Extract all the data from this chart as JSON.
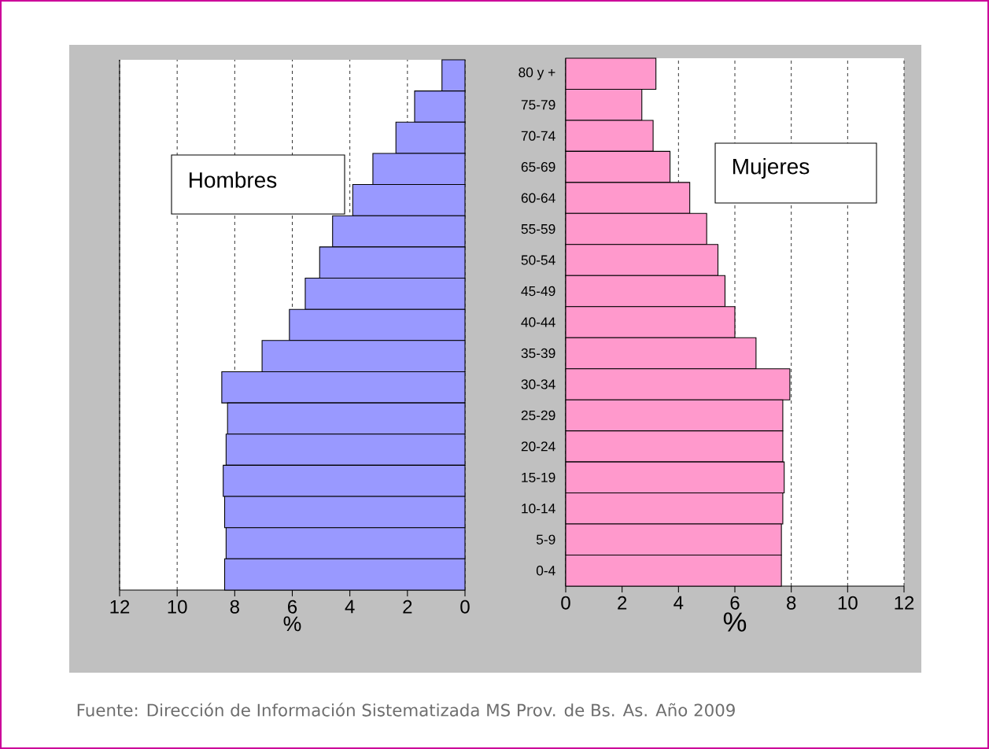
{
  "chart_data": [
    {
      "type": "bar",
      "orientation": "horizontal",
      "categories": [
        null,
        null,
        null,
        null,
        null,
        null,
        null,
        null,
        null,
        null,
        null,
        null,
        null,
        null,
        null,
        null,
        null
      ],
      "values": [
        0.8,
        1.75,
        2.4,
        3.2,
        3.9,
        4.6,
        5.05,
        5.55,
        6.1,
        7.05,
        8.45,
        8.25,
        8.3,
        8.4,
        8.35,
        8.3,
        8.35
      ],
      "color": "#9999ff",
      "xlim": [
        12,
        0
      ],
      "xticks": [
        12,
        10,
        8,
        6,
        4,
        2,
        0
      ],
      "xlabel": "%",
      "grid": "x",
      "tick_labels": "x",
      "annotations": [
        "Hombres"
      ]
    },
    {
      "type": "bar",
      "orientation": "horizontal",
      "categories": [
        "80 y +",
        "75-79",
        "70-74",
        "65-69",
        "60-64",
        "55-59",
        "50-54",
        "45-49",
        "40-44",
        "35-39",
        "30-34",
        "25-29",
        "20-24",
        "15-19",
        "10-14",
        "5-9",
        "0-4"
      ],
      "values": [
        3.2,
        2.7,
        3.1,
        3.7,
        4.4,
        5.0,
        5.4,
        5.65,
        6.0,
        6.75,
        7.95,
        7.7,
        7.7,
        7.75,
        7.7,
        7.65,
        7.65
      ],
      "color": "#ff99cc",
      "xlim": [
        0,
        12
      ],
      "xticks": [
        0,
        2,
        4,
        6,
        8,
        10,
        12
      ],
      "xlabel": "%",
      "grid": "x",
      "annotations": [
        "Mujeres",
        "Fuente: Dirección de Información Sistematizada MS Prov. de Bs. As. Año 2009"
      ]
    }
  ]
}
